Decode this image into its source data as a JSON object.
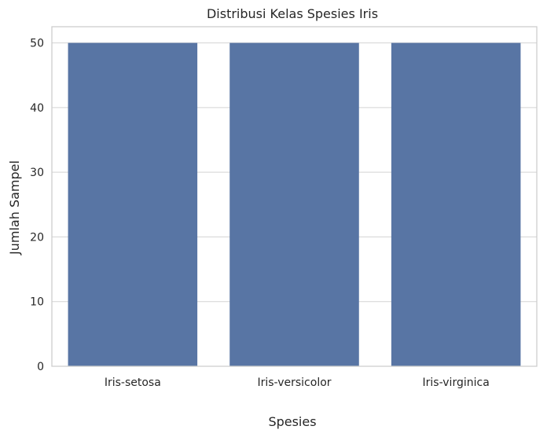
{
  "chart_data": {
    "type": "bar",
    "title": "Distribusi Kelas Spesies Iris",
    "xlabel": "Spesies",
    "ylabel": "Jumlah Sampel",
    "categories": [
      "Iris-setosa",
      "Iris-versicolor",
      "Iris-virginica"
    ],
    "values": [
      50,
      50,
      50
    ],
    "ylim": [
      0,
      52.5
    ],
    "yticks": [
      0,
      10,
      20,
      30,
      40,
      50
    ],
    "grid": "horizontal",
    "bar_color": "#5875a4",
    "grid_color": "#d3d3d3",
    "axes_edge_color": "#cccccc"
  }
}
